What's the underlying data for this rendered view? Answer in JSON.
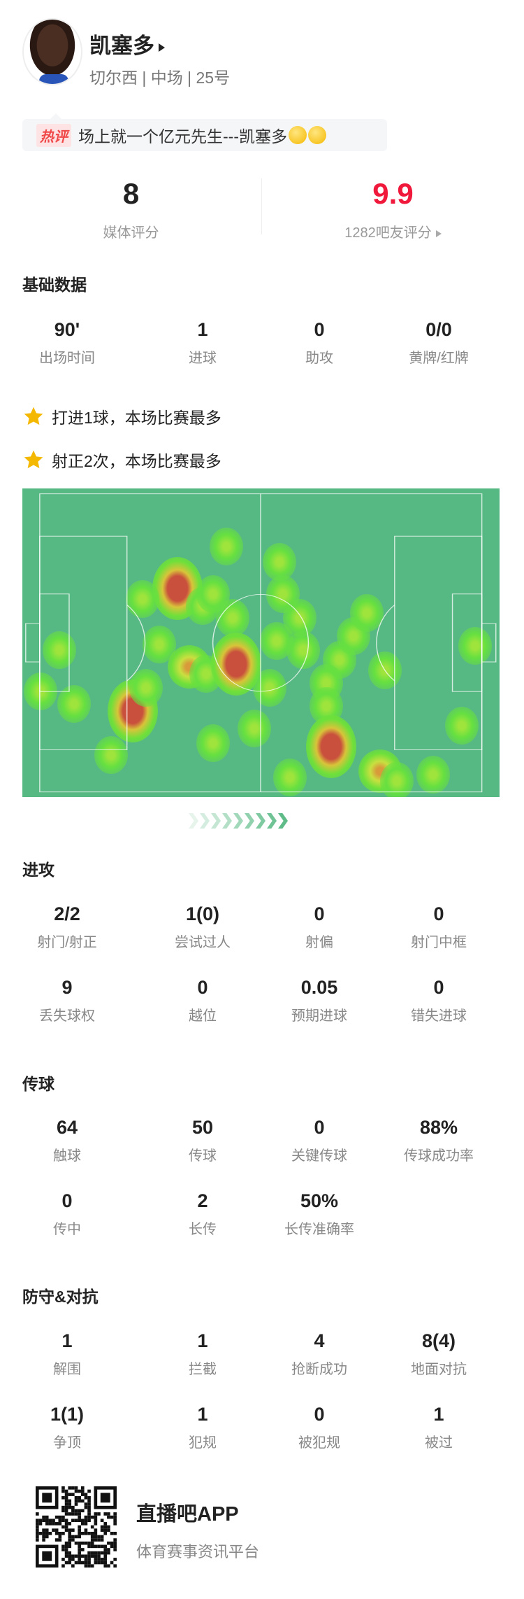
{
  "player": {
    "name": "凯塞多",
    "info": "切尔西 | 中场 | 25号"
  },
  "hot_comment": {
    "tag": "热评",
    "text": "场上就一个亿元先生---凯塞多"
  },
  "ratings": {
    "media": {
      "value": "8",
      "label": "媒体评分"
    },
    "fans": {
      "value": "9.9",
      "label": "1282吧友评分",
      "color": "#f0193c"
    }
  },
  "basic": {
    "title": "基础数据",
    "stats": [
      {
        "v": "90'",
        "l": "出场时间"
      },
      {
        "v": "1",
        "l": "进球"
      },
      {
        "v": "0",
        "l": "助攻"
      },
      {
        "v": "0/0",
        "l": "黄牌/红牌"
      }
    ]
  },
  "highlights": [
    "打进1球，本场比赛最多",
    "射正2次，本场比赛最多"
  ],
  "attack": {
    "title": "进攻",
    "stats": [
      {
        "v": "2/2",
        "l": "射门/射正"
      },
      {
        "v": "1(0)",
        "l": "尝试过人"
      },
      {
        "v": "0",
        "l": "射偏"
      },
      {
        "v": "0",
        "l": "射门中框"
      },
      {
        "v": "9",
        "l": "丢失球权"
      },
      {
        "v": "0",
        "l": "越位"
      },
      {
        "v": "0.05",
        "l": "预期进球"
      },
      {
        "v": "0",
        "l": "错失进球"
      }
    ]
  },
  "passing": {
    "title": "传球",
    "stats": [
      {
        "v": "64",
        "l": "触球"
      },
      {
        "v": "50",
        "l": "传球"
      },
      {
        "v": "0",
        "l": "关键传球"
      },
      {
        "v": "88%",
        "l": "传球成功率"
      },
      {
        "v": "0",
        "l": "传中"
      },
      {
        "v": "2",
        "l": "长传"
      },
      {
        "v": "50%",
        "l": "长传准确率"
      }
    ]
  },
  "defense": {
    "title": "防守&对抗",
    "stats": [
      {
        "v": "1",
        "l": "解围"
      },
      {
        "v": "1",
        "l": "拦截"
      },
      {
        "v": "4",
        "l": "抢断成功"
      },
      {
        "v": "8(4)",
        "l": "地面对抗"
      },
      {
        "v": "1(1)",
        "l": "争顶"
      },
      {
        "v": "1",
        "l": "犯规"
      },
      {
        "v": "0",
        "l": "被犯规"
      },
      {
        "v": "1",
        "l": "被过"
      }
    ]
  },
  "footer": {
    "app": "直播吧APP",
    "tagline": "体育赛事资讯平台"
  },
  "colors": {
    "pitch": "#56b882",
    "accent": "#f0193c",
    "star": "#f5b800"
  }
}
